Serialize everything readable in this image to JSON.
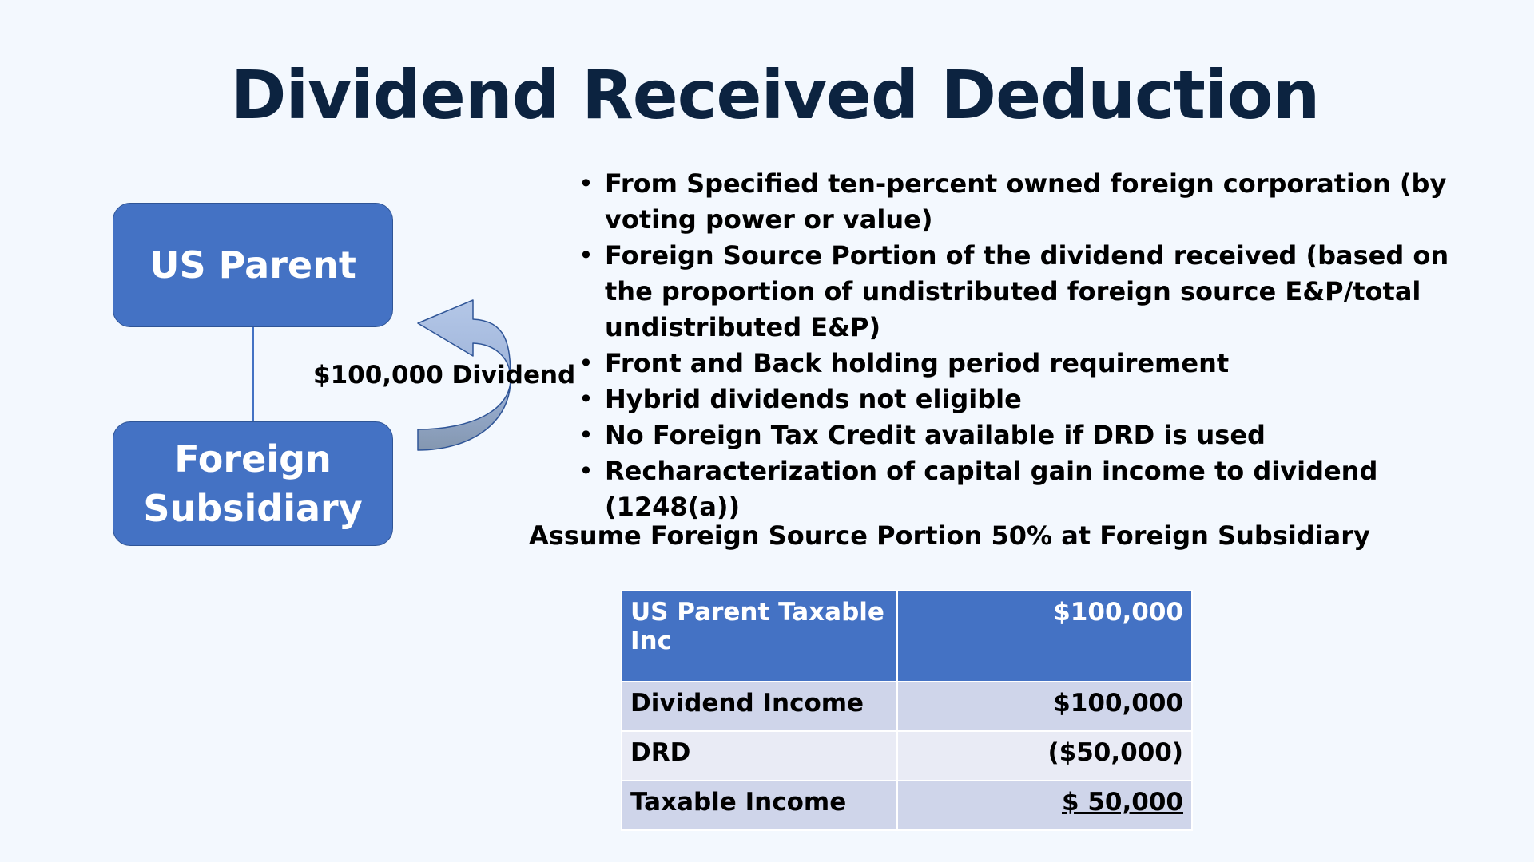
{
  "title": "Dividend Received Deduction",
  "diagram": {
    "top_box": "US Parent",
    "bottom_box_line1": "Foreign",
    "bottom_box_line2": "Subsidiary",
    "arrow_label": "$100,000 Dividend",
    "box_color": "#4472c4",
    "arrow_color": "#8faadc"
  },
  "bullets": [
    "From Specified ten-percent owned foreign corporation (by voting power or value)",
    "Foreign Source Portion of the dividend received (based on the proportion of undistributed foreign source E&P/total undistributed E&P)",
    "Front and Back holding period requirement",
    "Hybrid dividends not eligible",
    "No Foreign Tax Credit available if DRD is used",
    "Recharacterization of capital gain income to dividend (1248(a))"
  ],
  "bullet_glyph": "•",
  "assumption": "Assume Foreign Source Portion 50% at Foreign Subsidiary",
  "table": {
    "header": {
      "label": "US Parent Taxable Inc",
      "value": "$100,000"
    },
    "rows": [
      {
        "label": "Dividend Income",
        "value": "$100,000"
      },
      {
        "label": "DRD",
        "value": "($50,000)"
      },
      {
        "label": "Taxable Income",
        "value": "$ 50,000"
      }
    ]
  }
}
